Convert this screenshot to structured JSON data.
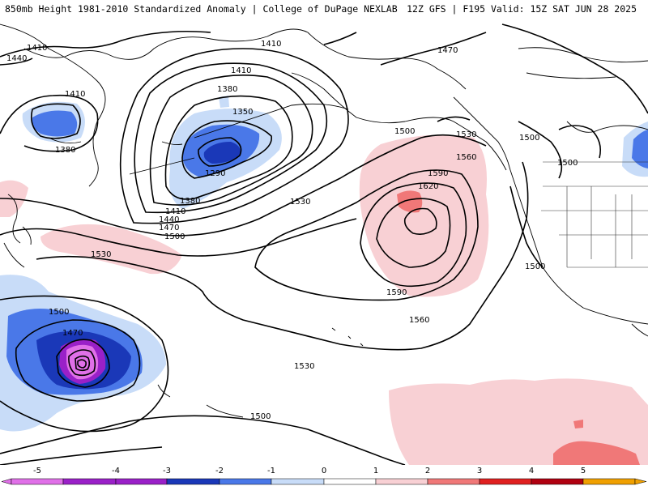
{
  "header": {
    "title_left": "850mb Height 1981-2010 Standardized Anomaly | College of DuPage NEXLAB",
    "title_right": "12Z GFS | F195 Valid: 15Z SAT JUN 28 2025"
  },
  "colors": {
    "neg5": "#e070e8",
    "neg4": "#9a20c8",
    "neg3": "#1a38b8",
    "neg2": "#4a78e8",
    "neg1": "#c8dcf8",
    "pos1": "#f8d0d4",
    "pos2": "#f07878",
    "pos3": "#e02020",
    "pos4": "#b00010",
    "pos5": "#f0a000"
  },
  "contour_labels": [
    "1410",
    "1410",
    "1440",
    "1410",
    "1410",
    "1380",
    "1380",
    "1350",
    "1290",
    "1380",
    "1410",
    "1440",
    "1470",
    "1500",
    "1530",
    "1470",
    "1500",
    "1530",
    "1560",
    "1590",
    "1620",
    "1530",
    "1560",
    "1590",
    "1500",
    "1500",
    "1500",
    "1500",
    "1470",
    "1530",
    "1500"
  ],
  "colorbar": {
    "ticks": [
      "-5",
      "-4",
      "-3",
      "-2",
      "-1",
      "0",
      "1",
      "2",
      "3",
      "4",
      "5"
    ]
  }
}
